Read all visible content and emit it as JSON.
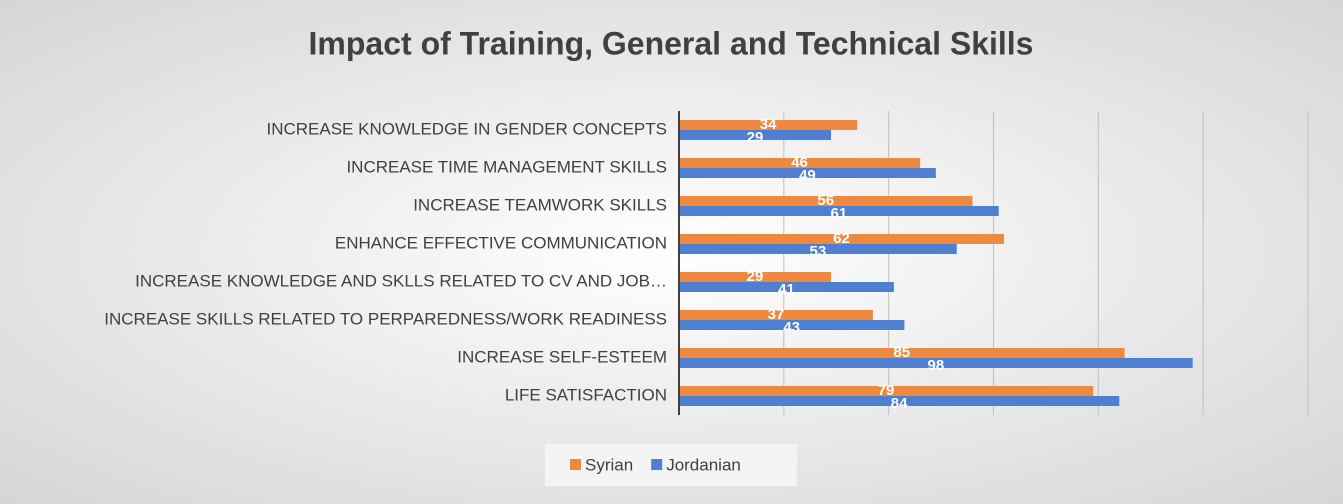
{
  "chart_data": {
    "type": "bar",
    "orientation": "horizontal",
    "title": "Impact of Training, General and Technical Skills",
    "categories": [
      "INCREASE KNOWLEDGE IN GENDER CONCEPTS",
      "INCREASE TIME MANAGEMENT SKILLS",
      "INCREASE TEAMWORK SKILLS",
      "ENHANCE EFFECTIVE COMMUNICATION",
      "INCREASE KNOWLEDGE AND SKLLS RELATED TO CV AND JOB…",
      "INCREASE SKILLS RELATED TO PERPAREDNESS/WORK READINESS",
      "INCREASE SELF-ESTEEM",
      "LIFE SATISFACTION"
    ],
    "series": [
      {
        "name": "Syrian",
        "color": "#ed8a3f",
        "values": [
          34,
          46,
          56,
          62,
          29,
          37,
          85,
          79
        ]
      },
      {
        "name": "Jordanian",
        "color": "#4f7fd0",
        "values": [
          29,
          49,
          61,
          53,
          41,
          43,
          98,
          84
        ]
      }
    ],
    "xlim": [
      0,
      120
    ],
    "xticks": [
      0,
      20,
      40,
      60,
      80,
      100,
      120
    ],
    "grid": true,
    "legend": "bottom"
  }
}
